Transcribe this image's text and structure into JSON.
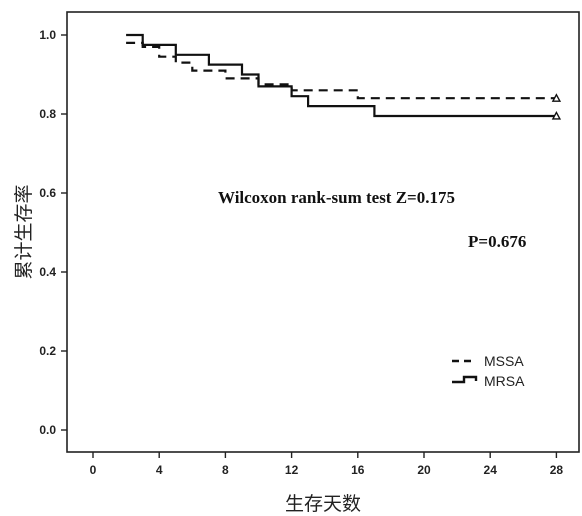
{
  "chart_data": {
    "type": "line",
    "xlabel": "生存天数",
    "ylabel": "累计生存率",
    "xlim": [
      0,
      28
    ],
    "ylim": [
      0.0,
      1.0
    ],
    "x_ticks": [
      0,
      4,
      8,
      12,
      16,
      20,
      24,
      28
    ],
    "y_ticks": [
      0.0,
      0.2,
      0.4,
      0.6,
      0.8,
      1.0
    ],
    "y_tick_labels": [
      "0.0",
      "0.2",
      "0.4",
      "0.6",
      "0.8",
      "1.0"
    ],
    "grid": false,
    "legend_position": "bottom-right",
    "annotations": {
      "test_line": "Wilcoxon rank-sum test  Z=0.175",
      "p_line": "P=0.676"
    },
    "series": [
      {
        "name": "MSSA",
        "style": "dashed",
        "color": "#111111",
        "steps": [
          [
            2,
            0.98
          ],
          [
            3,
            0.98
          ],
          [
            3,
            0.97
          ],
          [
            4,
            0.97
          ],
          [
            4,
            0.945
          ],
          [
            5,
            0.945
          ],
          [
            5,
            0.93
          ],
          [
            6,
            0.93
          ],
          [
            6,
            0.91
          ],
          [
            8,
            0.91
          ],
          [
            8,
            0.89
          ],
          [
            10,
            0.89
          ],
          [
            10,
            0.875
          ],
          [
            12,
            0.875
          ],
          [
            12,
            0.86
          ],
          [
            16,
            0.86
          ],
          [
            16,
            0.84
          ],
          [
            28,
            0.84
          ]
        ]
      },
      {
        "name": "MRSA",
        "style": "solid",
        "color": "#111111",
        "steps": [
          [
            2,
            1.0
          ],
          [
            3,
            1.0
          ],
          [
            3,
            0.975
          ],
          [
            5,
            0.975
          ],
          [
            5,
            0.95
          ],
          [
            7,
            0.95
          ],
          [
            7,
            0.925
          ],
          [
            9,
            0.925
          ],
          [
            9,
            0.9
          ],
          [
            10,
            0.9
          ],
          [
            10,
            0.87
          ],
          [
            12,
            0.87
          ],
          [
            12,
            0.845
          ],
          [
            13,
            0.845
          ],
          [
            13,
            0.82
          ],
          [
            17,
            0.82
          ],
          [
            17,
            0.795
          ],
          [
            28,
            0.795
          ]
        ]
      }
    ]
  }
}
